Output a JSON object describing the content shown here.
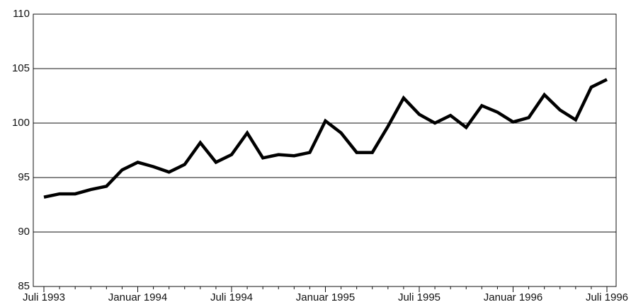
{
  "chart_data": {
    "type": "line",
    "categories": [
      "Juli 1993",
      null,
      null,
      null,
      null,
      null,
      "Januar 1994",
      null,
      null,
      null,
      null,
      null,
      "Juli 1994",
      null,
      null,
      null,
      null,
      null,
      "Januar 1995",
      null,
      null,
      null,
      null,
      null,
      "Juli 1995",
      null,
      null,
      null,
      null,
      null,
      "Januar 1996",
      null,
      null,
      null,
      null,
      null,
      "Juli 1996"
    ],
    "values": [
      93.2,
      93.5,
      93.5,
      93.9,
      94.2,
      95.7,
      96.4,
      96.0,
      95.5,
      96.2,
      98.2,
      96.4,
      97.1,
      99.1,
      96.8,
      97.1,
      97.0,
      97.3,
      100.2,
      99.1,
      97.3,
      97.3,
      99.7,
      102.3,
      100.8,
      100.0,
      100.7,
      99.6,
      101.6,
      101.0,
      100.1,
      100.5,
      102.6,
      101.2,
      100.3,
      103.3,
      104.0
    ],
    "color": "#000000",
    "ylim": [
      85,
      110
    ],
    "yticks": [
      85,
      90,
      95,
      100,
      105,
      110
    ],
    "grid": true
  }
}
